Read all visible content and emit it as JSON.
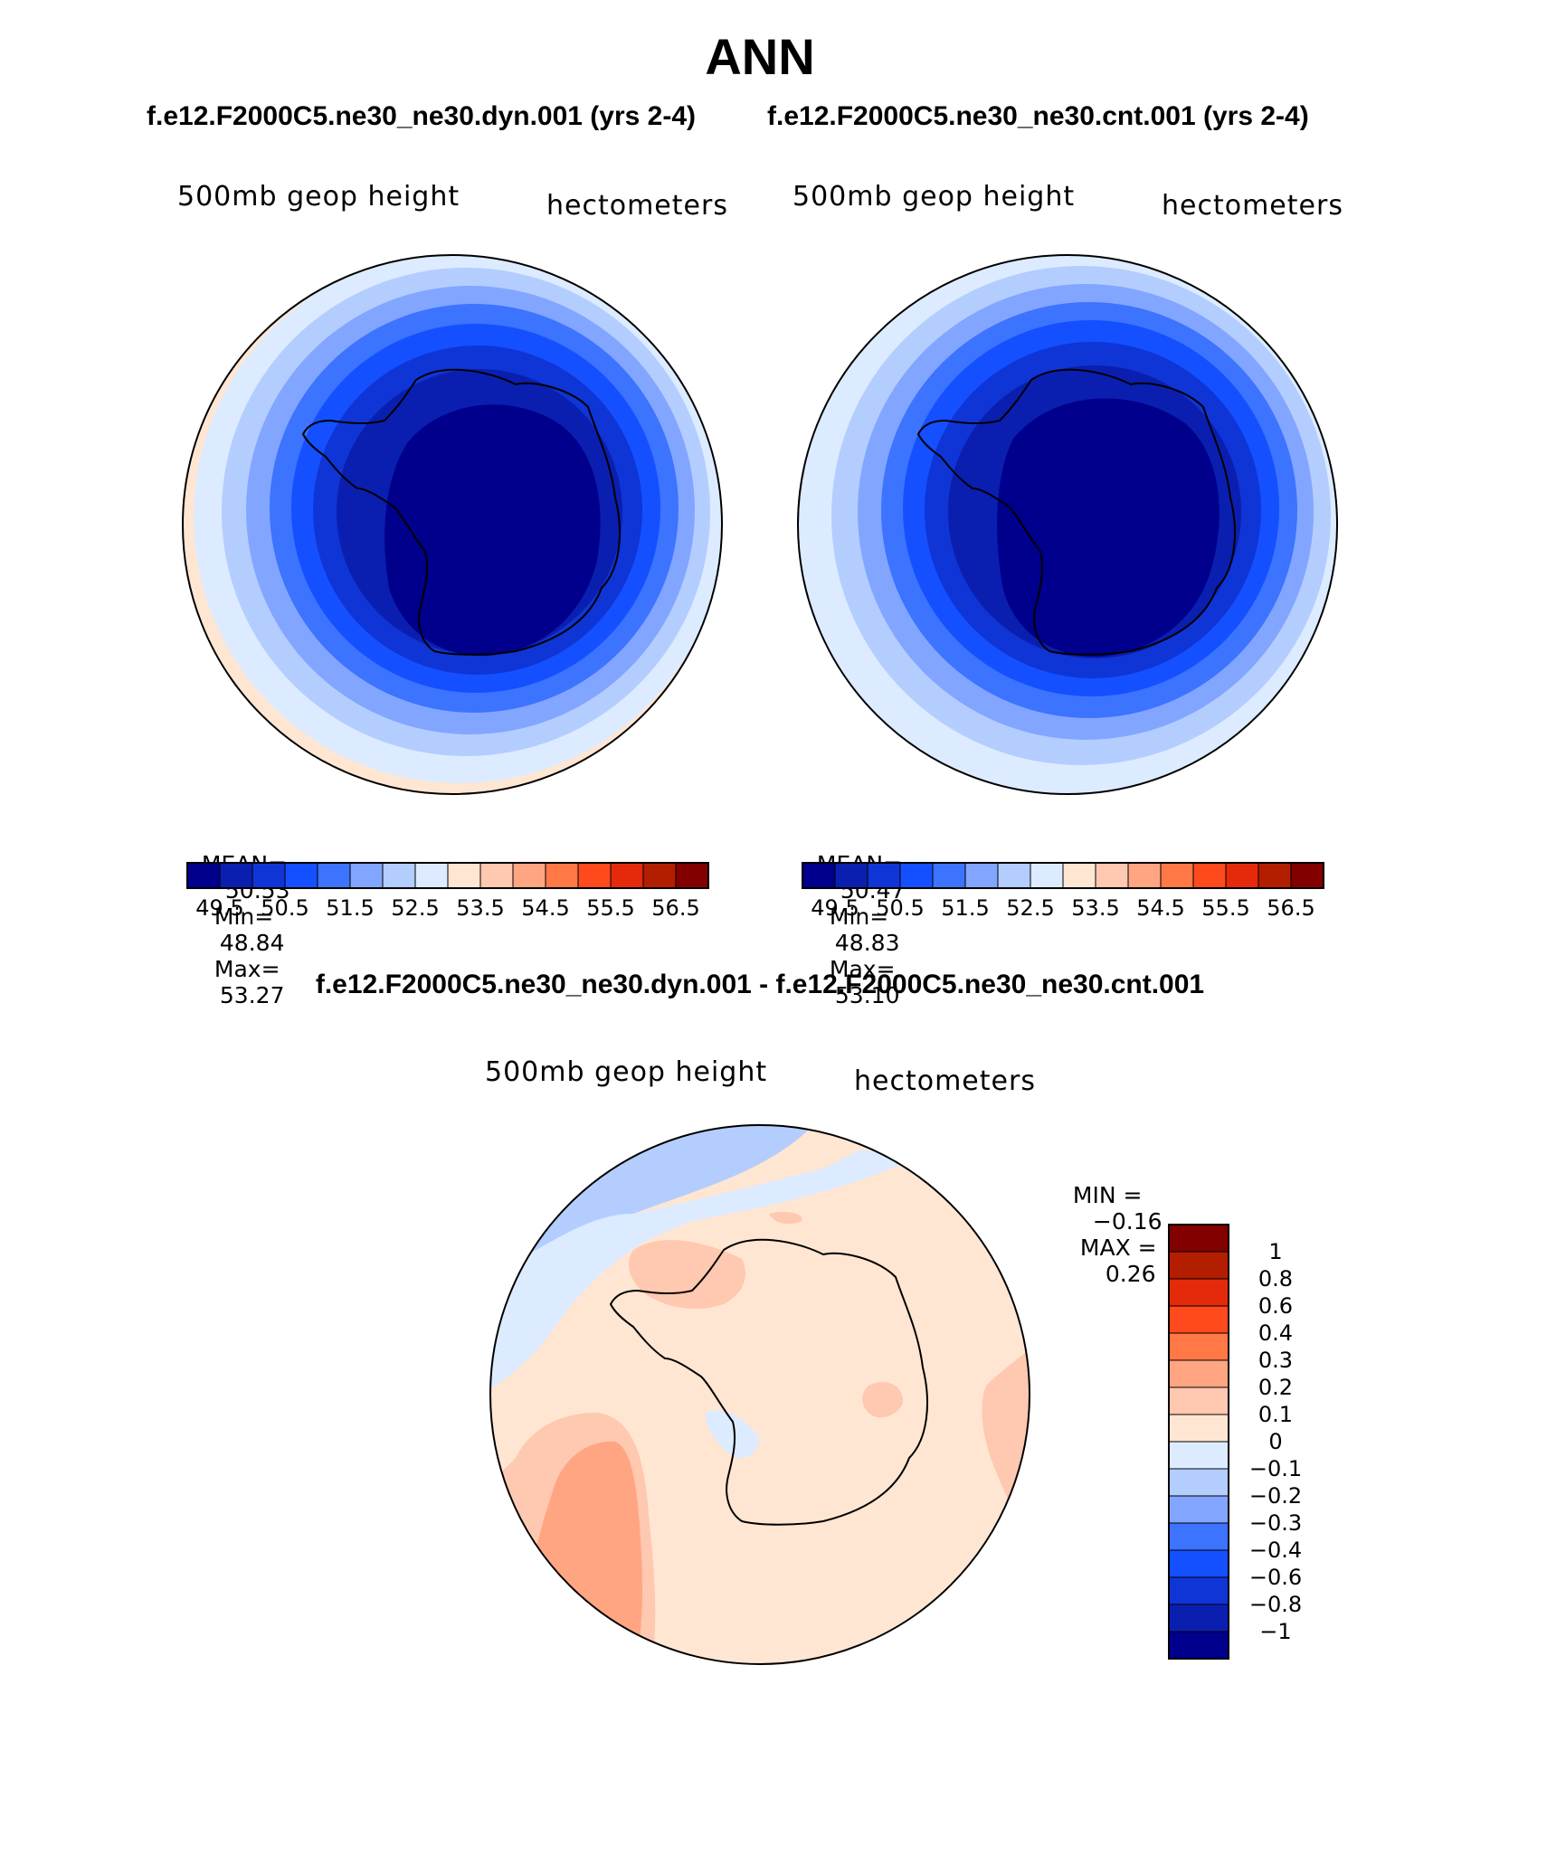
{
  "figure": {
    "title": "ANN",
    "case_test": "f.e12.F2000C5.ne30_ne30.dyn.001 (yrs 2-4)",
    "case_ctrl": "f.e12.F2000C5.ne30_ne30.cnt.001 (yrs 2-4)",
    "diff_title": "f.e12.F2000C5.ne30_ne30.dyn.001 - f.e12.F2000C5.ne30_ne30.cnt.001"
  },
  "panel_test": {
    "variable": "500mb geop height",
    "units": "hectometers",
    "mean_label": "MEAN=",
    "mean": "50.53",
    "min_label": "Min=",
    "min": "48.84",
    "max_label": "Max=",
    "max": "53.27"
  },
  "panel_ctrl": {
    "variable": "500mb geop height",
    "units": "hectometers",
    "mean_label": "MEAN=",
    "mean": "50.47",
    "min_label": "Min=",
    "min": "48.83",
    "max_label": "Max=",
    "max": "53.10"
  },
  "panel_diff": {
    "variable": "500mb geop height",
    "units": "hectometers",
    "min_label": "MIN =",
    "min": "−0.16",
    "max_label": "MAX =",
    "max": "0.26"
  },
  "colorbar_abs": {
    "colors": [
      "#00008c",
      "#0a1fb0",
      "#0f35d6",
      "#1450ff",
      "#3c73ff",
      "#82a5ff",
      "#b4cdff",
      "#dcebff",
      "#ffe6d2",
      "#ffc8b0",
      "#ffa582",
      "#ff7846",
      "#ff4a1e",
      "#e42a0a",
      "#b41e00",
      "#820000"
    ],
    "tick_labels": [
      "49.5",
      "50.5",
      "51.5",
      "52.5",
      "53.5",
      "54.5",
      "55.5",
      "56.5"
    ]
  },
  "colorbar_diff": {
    "colors": [
      "#820000",
      "#b41e00",
      "#e42a0a",
      "#ff4a1e",
      "#ff7846",
      "#ffa582",
      "#ffc8b0",
      "#ffe6d2",
      "#dcebff",
      "#b4cdff",
      "#82a5ff",
      "#3c73ff",
      "#1450ff",
      "#0f35d6",
      "#0a1fb0",
      "#00008c"
    ],
    "tick_labels": [
      "1",
      "0.8",
      "0.6",
      "0.4",
      "0.3",
      "0.2",
      "0.1",
      "0",
      "−0.1",
      "−0.2",
      "−0.3",
      "−0.4",
      "−0.6",
      "−0.8",
      "−1"
    ]
  }
}
